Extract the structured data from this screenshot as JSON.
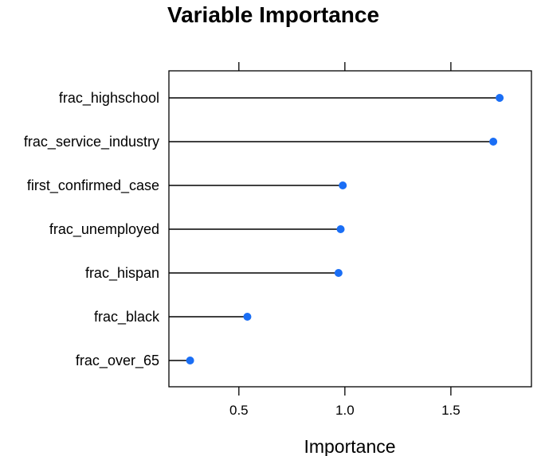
{
  "chart_data": {
    "type": "dot",
    "title": "Variable Importance",
    "xlabel": "Importance",
    "ylabel": "",
    "xlim": [
      0.17,
      1.88
    ],
    "x_ticks": [
      0.5,
      1.0,
      1.5
    ],
    "x_tick_labels": [
      "0.5",
      "1.0",
      "1.5"
    ],
    "grid": false,
    "point_color": "#1a6ef5",
    "categories": [
      "frac_highschool",
      "frac_service_industry",
      "first_confirmed_case",
      "frac_unemployed",
      "frac_hispan",
      "frac_black",
      "frac_over_65"
    ],
    "values": [
      1.73,
      1.7,
      0.99,
      0.98,
      0.97,
      0.54,
      0.27
    ]
  }
}
